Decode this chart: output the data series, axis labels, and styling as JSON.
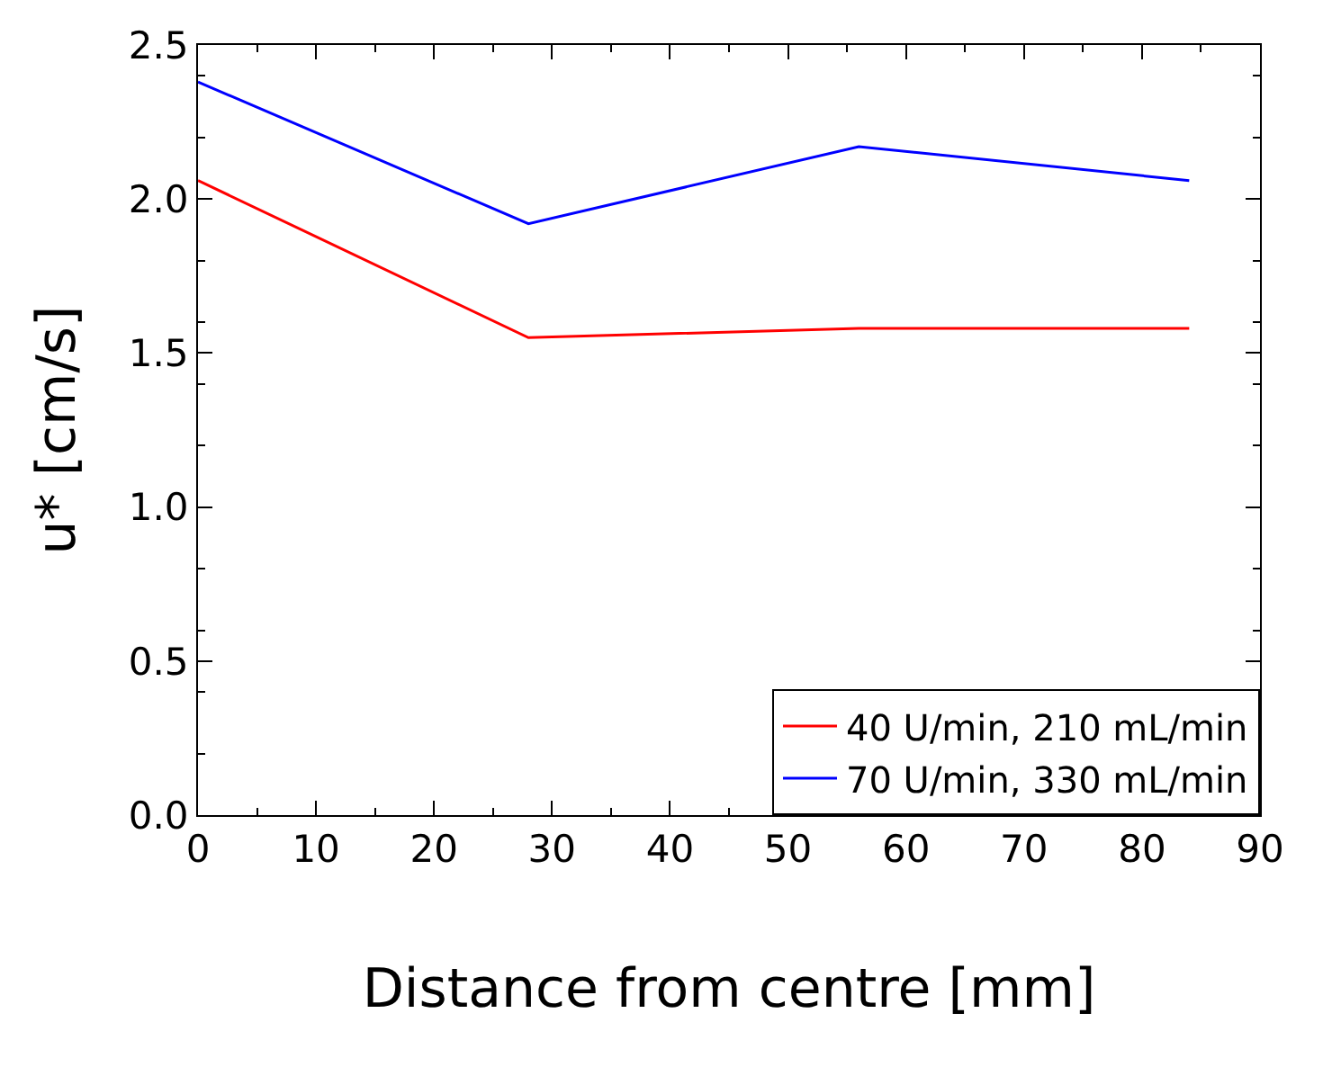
{
  "chart_data": {
    "type": "line",
    "xlabel": "Distance from centre [mm]",
    "ylabel": "u* [cm/s]",
    "x": [
      0,
      28,
      56,
      84
    ],
    "series": [
      {
        "name": "40 U/min, 210 mL/min",
        "color": "#ff0000",
        "values": [
          2.06,
          1.55,
          1.58,
          1.58
        ]
      },
      {
        "name": "70 U/min, 330 mL/min",
        "color": "#0000ff",
        "values": [
          2.38,
          1.92,
          2.17,
          2.06
        ]
      }
    ],
    "xlim": [
      0,
      90
    ],
    "xticks": [
      0,
      10,
      20,
      30,
      40,
      50,
      60,
      70,
      80,
      90
    ],
    "ylim": [
      0,
      2.5
    ],
    "yticks": [
      {
        "value": 0,
        "label": "0.0"
      },
      0.5,
      {
        "value": 1,
        "label": "1.0"
      },
      1.5,
      {
        "value": 2,
        "label": "2.0"
      },
      2.5
    ],
    "legend": "bottom right",
    "marker": "none",
    "line_style": "solid"
  }
}
